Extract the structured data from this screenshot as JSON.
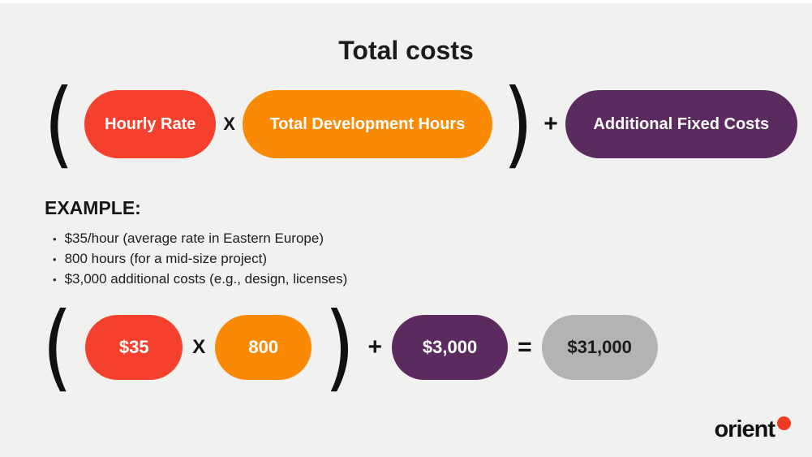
{
  "title": "Total costs",
  "formula": {
    "open_paren": "(",
    "close_paren": ")",
    "multiply": "X",
    "plus": "+",
    "terms": {
      "hourly_rate": "Hourly Rate",
      "total_development_hours": "Total Development Hours",
      "additional_fixed_costs": "Additional Fixed Costs"
    }
  },
  "example": {
    "heading": "EXAMPLE:",
    "bullet_char": "•",
    "bullets": [
      "$35/hour (average rate in Eastern Europe)",
      "800 hours (for a mid-size project)",
      "$3,000 additional costs (e.g., design, licenses)"
    ],
    "calculation": {
      "open_paren": "(",
      "close_paren": ")",
      "multiply": "X",
      "plus": "+",
      "equals": "=",
      "hourly_rate": "$35",
      "hours": "800",
      "additional_costs": "$3,000",
      "total": "$31,000"
    }
  },
  "logo": {
    "text": "orient"
  },
  "colors": {
    "background": "#F1F1F0",
    "red": "#F4402C",
    "orange": "#FA8A04",
    "purple": "#5B2A5E",
    "gray": "#B5B3B1",
    "text": "#1A1A1A",
    "logo_dot": "#EE3B24"
  }
}
